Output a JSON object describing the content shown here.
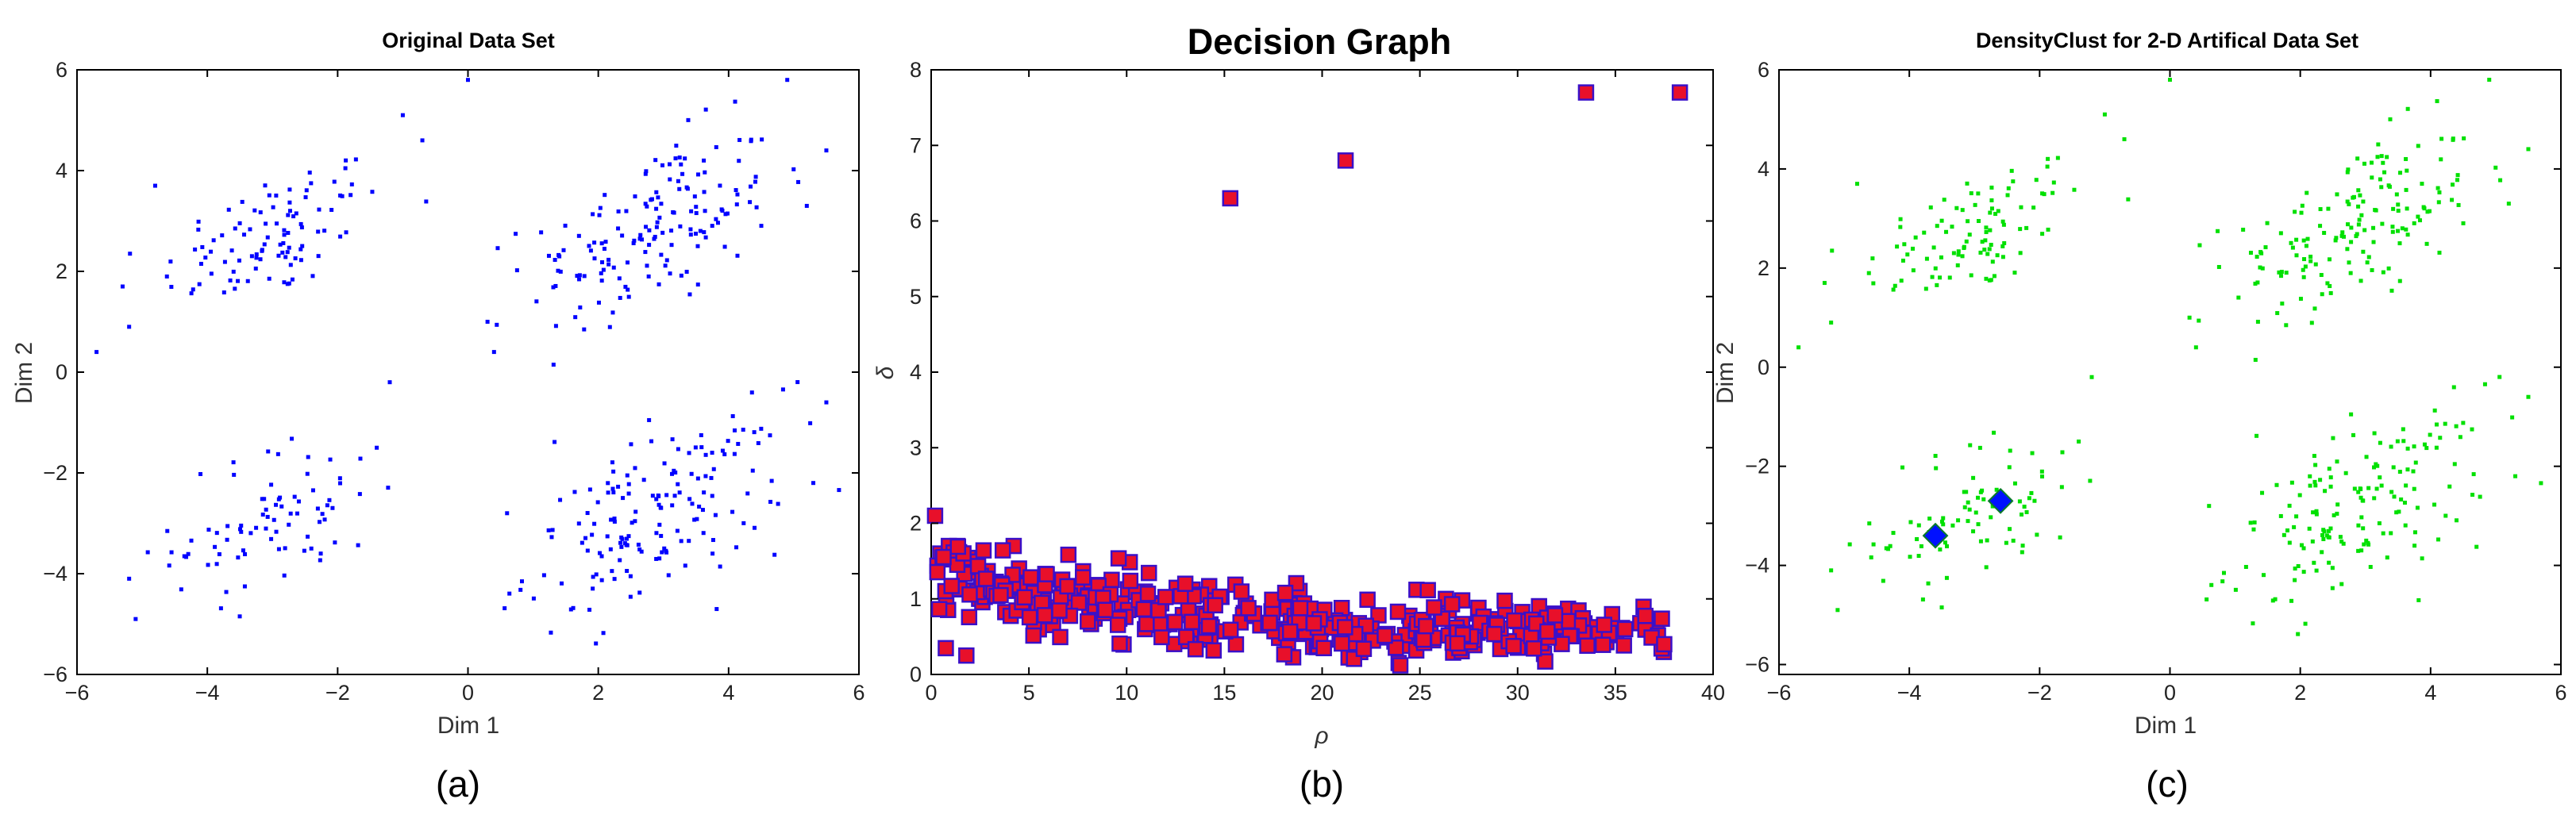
{
  "chart_data": [
    {
      "type": "scatter",
      "title": "Original Data Set",
      "xlabel": "Dim 1",
      "ylabel": "Dim 2",
      "panel_label": "(a)",
      "xlim": [
        -6,
        6
      ],
      "ylim": [
        -6,
        6
      ],
      "xticks": [
        -6,
        -4,
        -2,
        0,
        2,
        4,
        6
      ],
      "yticks": [
        -6,
        -4,
        -2,
        0,
        2,
        4,
        6
      ],
      "xtick_labels": [
        "−6",
        "−4",
        "−2",
        "0",
        "2",
        "4",
        "6"
      ],
      "ytick_labels": [
        "−6",
        "−4",
        "−2",
        "0",
        "2",
        "4",
        "6"
      ],
      "grid": false,
      "marker_color": "#0000ff",
      "clusters": [
        {
          "center": [
            -3,
            2.7
          ],
          "n": 100,
          "sx": 0.85,
          "sy": 0.75,
          "rho": 0.55
        },
        {
          "center": [
            2.8,
            2.8
          ],
          "n": 160,
          "sx": 0.95,
          "sy": 0.95,
          "rho": 0.5
        },
        {
          "center": [
            -2.9,
            -2.9
          ],
          "n": 80,
          "sx": 0.8,
          "sy": 0.8,
          "rho": 0.35
        },
        {
          "center": [
            2.9,
            -2.9
          ],
          "n": 160,
          "sx": 1.0,
          "sy": 0.95,
          "rho": 0.55
        }
      ],
      "points": [
        [
          -5.7,
          0.4
        ],
        [
          -5.2,
          0.9
        ],
        [
          -5.3,
          1.7
        ],
        [
          -4.8,
          3.7
        ],
        [
          -1.0,
          5.1
        ],
        [
          -0.7,
          4.6
        ],
        [
          0.0,
          5.8
        ],
        [
          4.9,
          5.8
        ],
        [
          5.5,
          4.4
        ],
        [
          0.4,
          0.4
        ],
        [
          0.3,
          1.0
        ],
        [
          5.2,
          3.3
        ],
        [
          -5.2,
          -4.1
        ],
        [
          -5.1,
          -4.9
        ],
        [
          -1.4,
          -1.5
        ],
        [
          -1.2,
          -0.2
        ],
        [
          0.6,
          -2.8
        ],
        [
          5.5,
          -0.6
        ],
        [
          5.3,
          -2.2
        ]
      ]
    },
    {
      "type": "scatter",
      "title": "Decision Graph",
      "xlabel": "ρ",
      "ylabel": "δ",
      "panel_label": "(b)",
      "xlim": [
        0,
        40
      ],
      "ylim": [
        0,
        8
      ],
      "xticks": [
        0,
        5,
        10,
        15,
        20,
        25,
        30,
        35,
        40
      ],
      "yticks": [
        0,
        1,
        2,
        3,
        4,
        5,
        6,
        7,
        8
      ],
      "grid": false,
      "marker": "square",
      "marker_fill": "#e8102a",
      "marker_edge": "#3a10c8",
      "outliers": [
        [
          0.2,
          2.1
        ],
        [
          15.3,
          6.3
        ],
        [
          21.2,
          6.8
        ],
        [
          33.5,
          7.7
        ],
        [
          38.3,
          7.7
        ],
        [
          13.0,
          1.2
        ],
        [
          1.8,
          0.25
        ],
        [
          24.0,
          0.12
        ],
        [
          37.5,
          0.4
        ],
        [
          35.5,
          0.6
        ]
      ],
      "bulk": {
        "rho_range": [
          0.3,
          37.5
        ],
        "delta_at_start": 1.3,
        "delta_at_end": 0.45,
        "spread": 0.32,
        "n": 420
      }
    },
    {
      "type": "scatter",
      "title": "DensityClust for 2-D Artifical Data Set",
      "xlabel": "Dim 1",
      "ylabel": "Dim 2",
      "panel_label": "(c)",
      "xlim": [
        -6,
        6
      ],
      "ylim": [
        -6.2,
        6
      ],
      "xticks": [
        -6,
        -4,
        -2,
        0,
        2,
        4,
        6
      ],
      "yticks": [
        -6,
        -4,
        -2,
        0,
        2,
        4,
        6
      ],
      "xtick_labels": [
        "−6",
        "−4",
        "−2",
        "0",
        "2",
        "4",
        "6"
      ],
      "ytick_labels": [
        "−6",
        "−4",
        "−2",
        "0",
        "2",
        "4",
        "6"
      ],
      "grid": false,
      "marker_color": "#00e000",
      "center_color": "#0010ff",
      "centers": [
        [
          -3.6,
          -3.4
        ],
        [
          -2.6,
          -2.7
        ]
      ]
    }
  ]
}
